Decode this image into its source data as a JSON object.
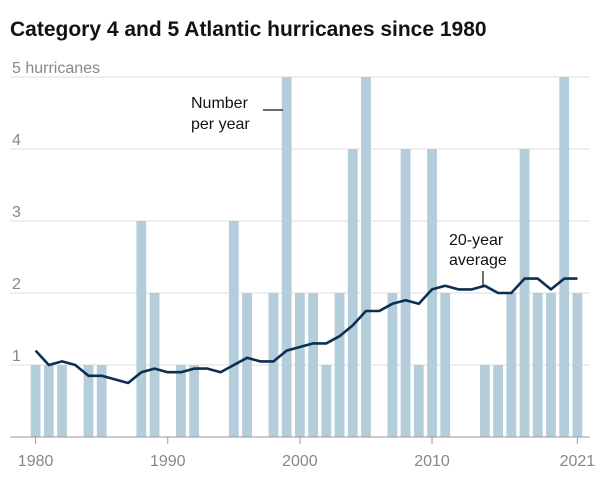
{
  "chart_data": {
    "type": "bar",
    "title": "Category 4 and 5 Atlantic hurricanes since 1980",
    "x": [
      1980,
      1981,
      1982,
      1983,
      1984,
      1985,
      1986,
      1987,
      1988,
      1989,
      1990,
      1991,
      1992,
      1993,
      1994,
      1995,
      1996,
      1997,
      1998,
      1999,
      2000,
      2001,
      2002,
      2003,
      2004,
      2005,
      2006,
      2007,
      2008,
      2009,
      2010,
      2011,
      2012,
      2013,
      2014,
      2015,
      2016,
      2017,
      2018,
      2019,
      2020,
      2021
    ],
    "series": [
      {
        "type": "bar",
        "color": "#b3cddb",
        "values": [
          1,
          1,
          1,
          0,
          1,
          1,
          0,
          0,
          3,
          2,
          0,
          1,
          1,
          0,
          0,
          3,
          2,
          0,
          2,
          5,
          2,
          2,
          1,
          2,
          4,
          5,
          0,
          2,
          4,
          1,
          4,
          2,
          0,
          0,
          1,
          1,
          2,
          4,
          2,
          2,
          5,
          2
        ]
      },
      {
        "type": "line",
        "color": "#0d2f52",
        "values": [
          1.2,
          1.0,
          1.05,
          1.0,
          0.85,
          0.85,
          0.8,
          0.75,
          0.9,
          0.95,
          0.9,
          0.9,
          0.95,
          0.95,
          0.9,
          1.0,
          1.1,
          1.05,
          1.05,
          1.2,
          1.25,
          1.3,
          1.3,
          1.4,
          1.55,
          1.75,
          1.75,
          1.85,
          1.9,
          1.85,
          2.05,
          2.1,
          2.05,
          2.05,
          2.1,
          2.0,
          2.0,
          2.2,
          2.2,
          2.05,
          2.2,
          2.2
        ]
      }
    ],
    "xlim": [
      1979.5,
      2021.5
    ],
    "xticks": [
      1980,
      1990,
      2000,
      2010,
      2021
    ],
    "ylim": [
      0,
      5
    ],
    "yticks": [
      1,
      2,
      3,
      4,
      {
        "value": 5,
        "label": "5 hurricanes"
      }
    ],
    "grid": true,
    "annotations": [
      {
        "lines": [
          "Number",
          "per year"
        ]
      },
      {
        "lines": [
          "20-year",
          "average"
        ]
      }
    ]
  }
}
